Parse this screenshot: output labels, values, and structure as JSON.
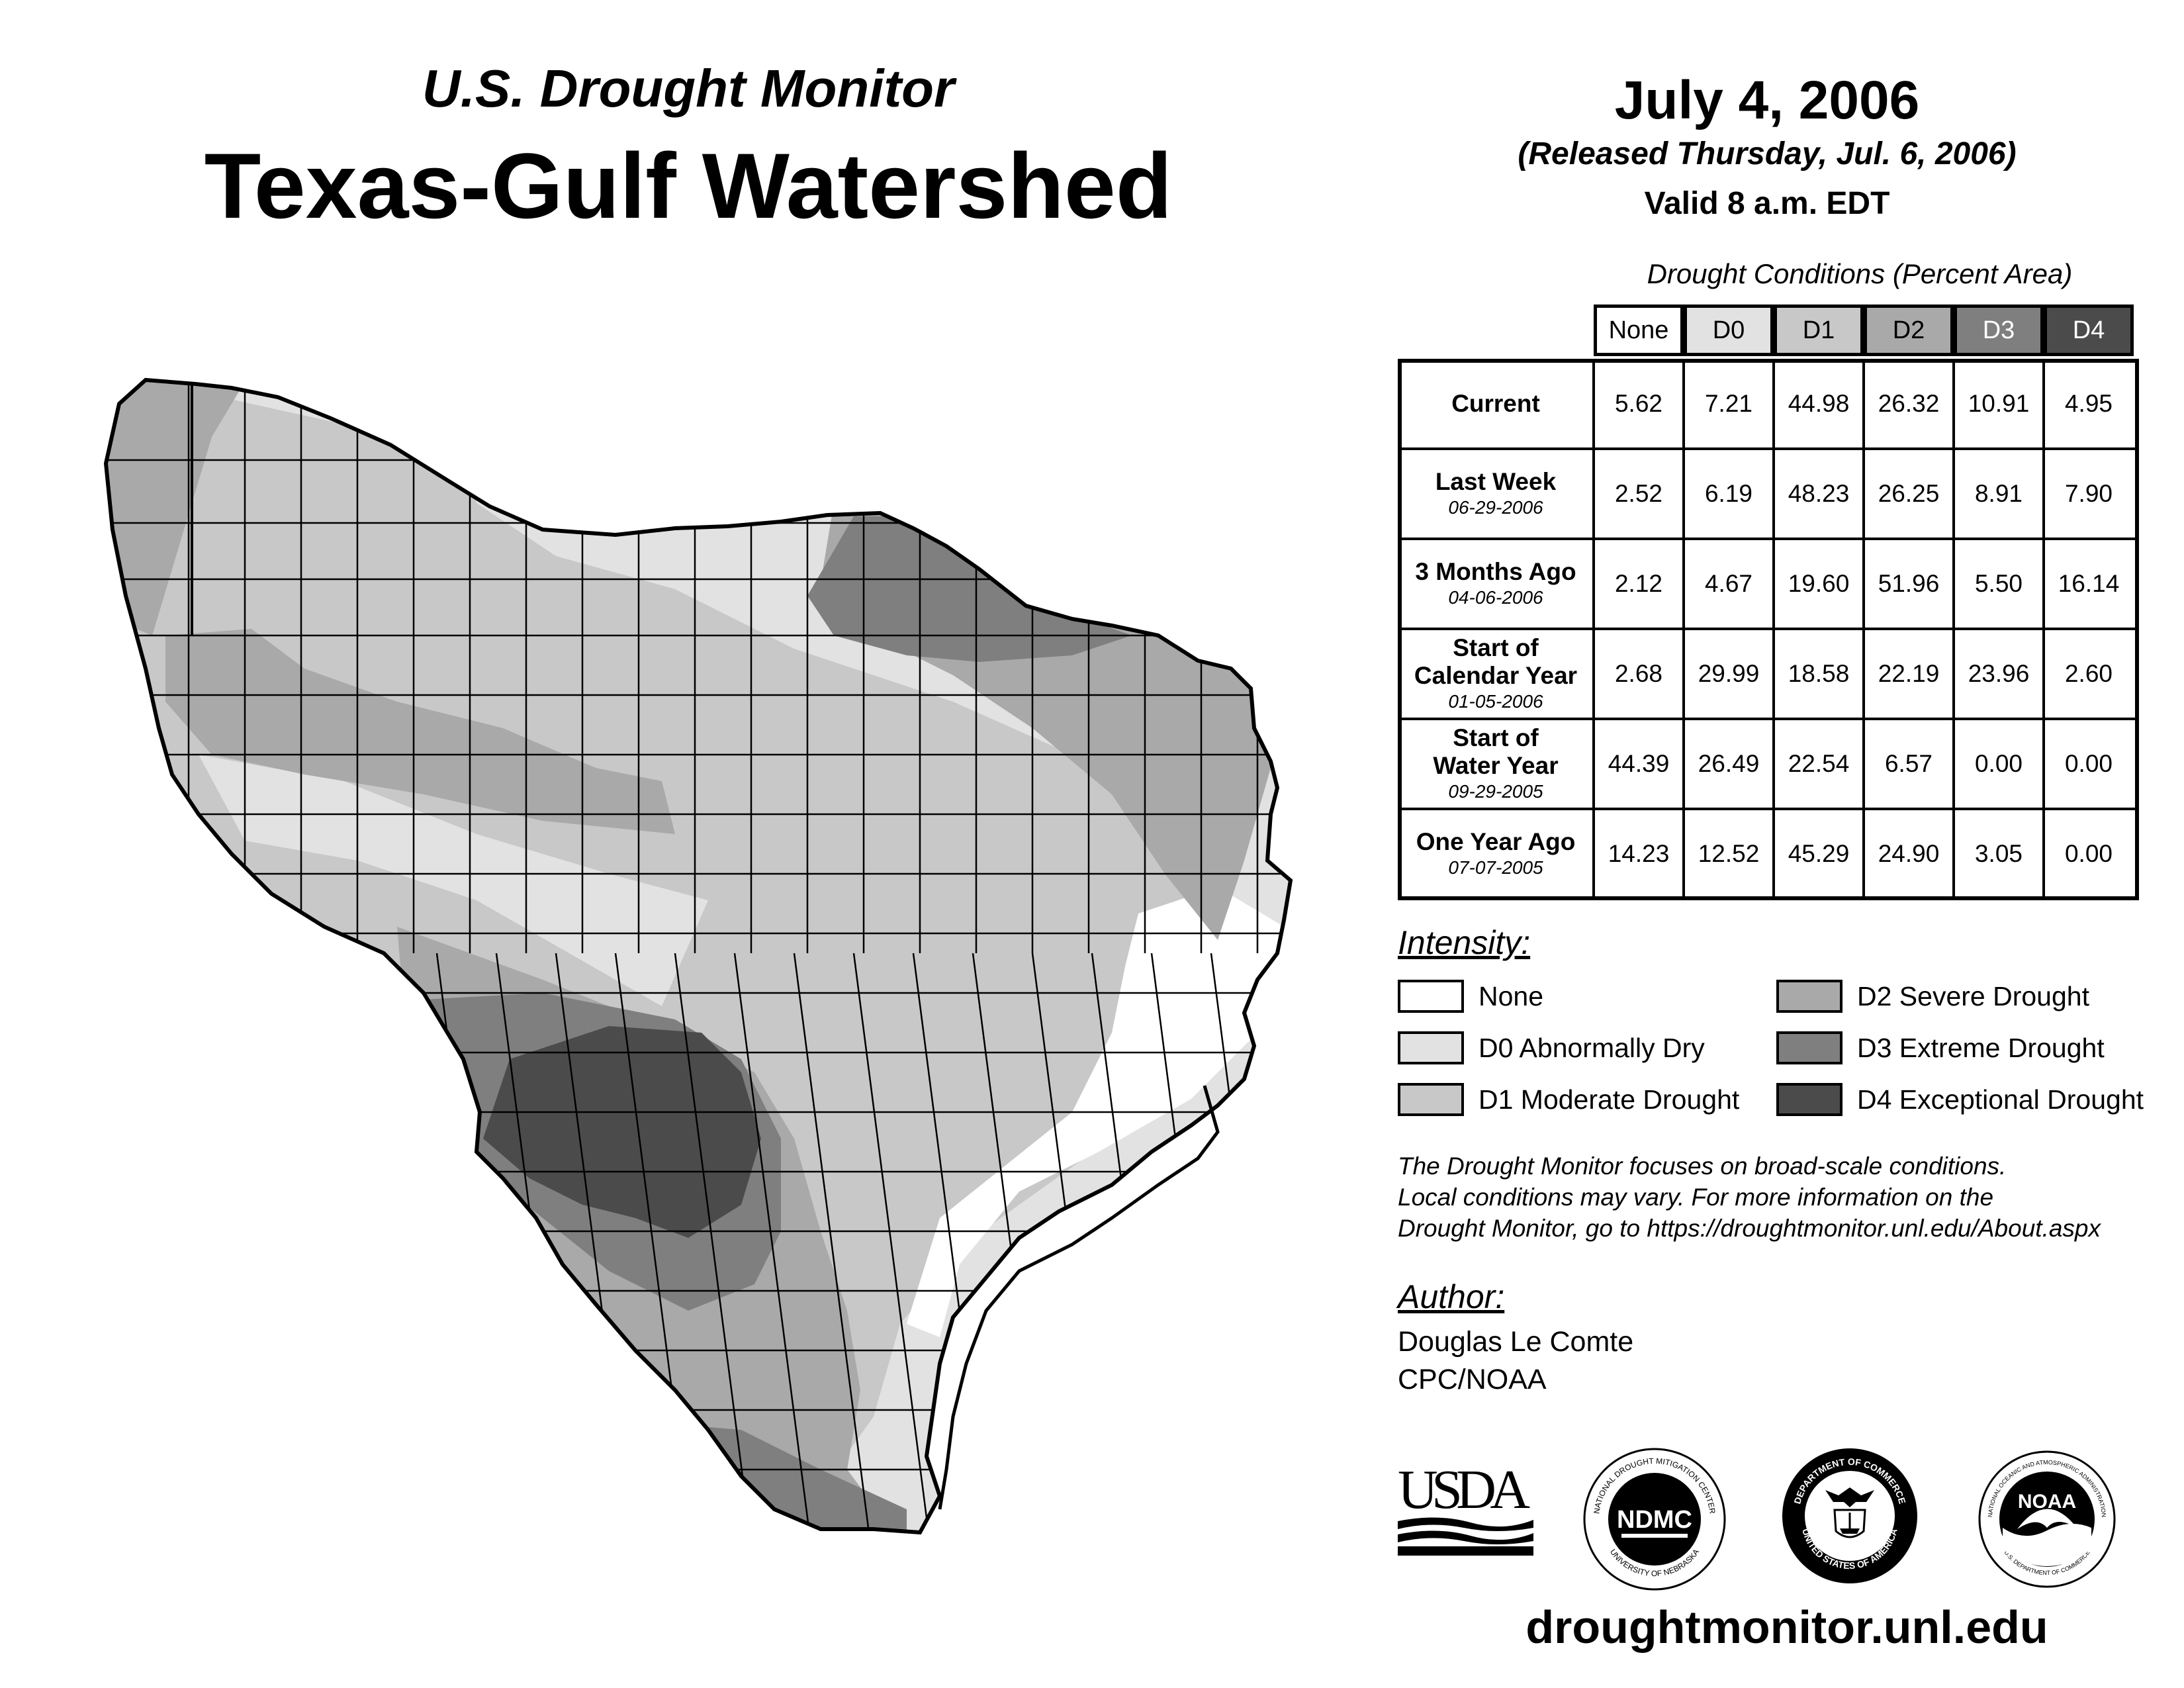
{
  "header": {
    "subtitle": "U.S. Drought Monitor",
    "title": "Texas-Gulf Watershed",
    "date": "July 4, 2006",
    "released": "(Released Thursday, Jul. 6, 2006)",
    "valid": "Valid 8 a.m. EDT"
  },
  "table": {
    "caption": "Drought Conditions (Percent Area)",
    "columns": [
      "None",
      "D0",
      "D1",
      "D2",
      "D3",
      "D4"
    ],
    "rows": [
      {
        "label": "Current",
        "date": "",
        "values": [
          "5.62",
          "7.21",
          "44.98",
          "26.32",
          "10.91",
          "4.95"
        ]
      },
      {
        "label": "Last Week",
        "date": "06-29-2006",
        "values": [
          "2.52",
          "6.19",
          "48.23",
          "26.25",
          "8.91",
          "7.90"
        ]
      },
      {
        "label": "3 Months Ago",
        "date": "04-06-2006",
        "values": [
          "2.12",
          "4.67",
          "19.60",
          "51.96",
          "5.50",
          "16.14"
        ]
      },
      {
        "label": "Start of Calendar Year",
        "date": "01-05-2006",
        "values": [
          "2.68",
          "29.99",
          "18.58",
          "22.19",
          "23.96",
          "2.60"
        ]
      },
      {
        "label": "Start of Water Year",
        "date": "09-29-2005",
        "values": [
          "44.39",
          "26.49",
          "22.54",
          "6.57",
          "0.00",
          "0.00"
        ]
      },
      {
        "label": "One Year Ago",
        "date": "07-07-2005",
        "values": [
          "14.23",
          "12.52",
          "45.29",
          "24.90",
          "3.05",
          "0.00"
        ]
      }
    ]
  },
  "legend": {
    "heading": "Intensity:",
    "items": [
      {
        "label": "None",
        "color": "#ffffff"
      },
      {
        "label": "D0 Abnormally Dry",
        "color": "#e2e2e2"
      },
      {
        "label": "D1 Moderate Drought",
        "color": "#c8c8c8"
      },
      {
        "label": "D2 Severe Drought",
        "color": "#a9a9a9"
      },
      {
        "label": "D3 Extreme Drought",
        "color": "#7f7f7f"
      },
      {
        "label": "D4 Exceptional Drought",
        "color": "#4b4b4b"
      }
    ]
  },
  "disclaimer": [
    "The Drought Monitor focuses on broad-scale conditions.",
    "Local conditions may vary. For more information on the",
    "Drought Monitor, go to https://droughtmonitor.unl.edu/About.aspx"
  ],
  "author": {
    "heading": "Author:",
    "name": "Douglas Le Comte",
    "org": "CPC/NOAA"
  },
  "logos": {
    "usda": "USDA",
    "ndmc": "NDMC",
    "ndmc_ring_top": "NATIONAL DROUGHT MITIGATION CENTER",
    "ndmc_ring_bottom": "UNIVERSITY OF NEBRASKA",
    "doc_ring_top": "DEPARTMENT OF COMMERCE",
    "doc_ring_bottom": "UNITED STATES OF AMERICA",
    "noaa": "NOAA",
    "noaa_ring_top": "NATIONAL OCEANIC AND ATMOSPHERIC ADMINISTRATION",
    "noaa_ring_bottom": "U.S. DEPARTMENT OF COMMERCE"
  },
  "footer_url": "droughtmonitor.unl.edu"
}
